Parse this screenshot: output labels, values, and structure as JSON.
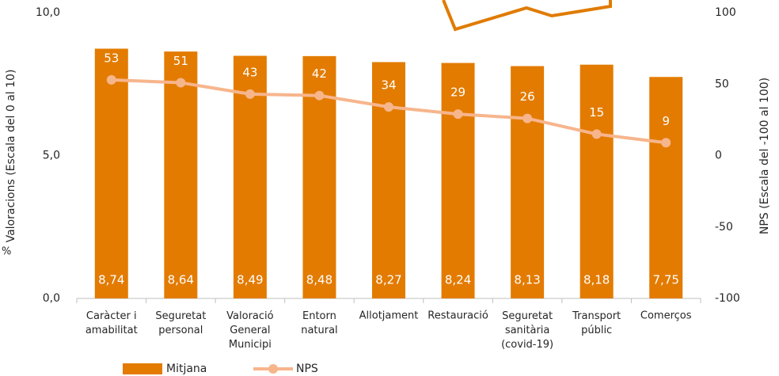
{
  "chart_data": {
    "type": "bar-line",
    "annotation": "%",
    "y_label": "Valoracions (Escala  del 0 al 10)",
    "y2_label": "NPS (Escala  del -100 al 100)",
    "categories": [
      "Caràcter i\namabilitat",
      "Seguretat\npersonal",
      "Valoració\nGeneral\nMunicipi",
      "Entorn\nnatural",
      "Allotjament",
      "Restauració",
      "Seguretat\nsanitària\n(covid-19)",
      "Transport\npúblic",
      "Comerços"
    ],
    "series": [
      {
        "name": "Mitjana",
        "type": "bar",
        "color": "#e37b00",
        "values": [
          8.74,
          8.64,
          8.49,
          8.48,
          8.27,
          8.24,
          8.13,
          8.18,
          7.75
        ],
        "value_labels": [
          "8,74",
          "8,64",
          "8,49",
          "8,48",
          "8,27",
          "8,24",
          "8,13",
          "8,18",
          "7,75"
        ]
      },
      {
        "name": "NPS",
        "type": "line",
        "axis": "y2",
        "color": "#f7b58c",
        "values": [
          53,
          51,
          43,
          42,
          34,
          29,
          26,
          15,
          9
        ]
      }
    ],
    "ylim": [
      0,
      10
    ],
    "yticks": [
      {
        "value": 0,
        "label": "0,0"
      },
      {
        "value": 5,
        "label": "5,0"
      },
      {
        "value": 10,
        "label": "10,0"
      }
    ],
    "y2lim": [
      -100,
      100
    ],
    "y2ticks": [
      -100,
      -50,
      0,
      50,
      100
    ],
    "legend": "bottom"
  }
}
